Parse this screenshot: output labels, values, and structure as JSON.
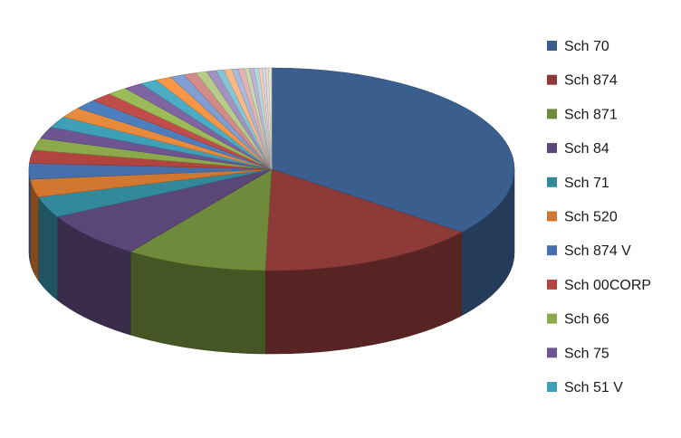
{
  "chart_data": {
    "type": "pie",
    "title": "",
    "three_d": true,
    "legend_position": "right",
    "slices": [
      {
        "name": "Sch 70",
        "value": 34.0,
        "color": "#3A5F8F"
      },
      {
        "name": "Sch 874",
        "value": 14.0,
        "color": "#8E3A38"
      },
      {
        "name": "Sch 871",
        "value": 9.0,
        "color": "#6F8A3A"
      },
      {
        "name": "Sch 84",
        "value": 7.0,
        "color": "#5B4777"
      },
      {
        "name": "Sch 71",
        "value": 3.2,
        "color": "#33889C"
      },
      {
        "name": "Sch 520",
        "value": 2.7,
        "color": "#D2772F"
      },
      {
        "name": "Sch 874 V",
        "value": 2.4,
        "color": "#4670AB"
      },
      {
        "name": "Sch 00CORP",
        "value": 2.0,
        "color": "#B14441"
      },
      {
        "name": "Sch 66",
        "value": 1.8,
        "color": "#8CAA4C"
      },
      {
        "name": "Sch 75",
        "value": 1.8,
        "color": "#6E5592"
      },
      {
        "name": "Sch 51 V",
        "value": 1.7,
        "color": "#3E9FB8"
      },
      {
        "name": "",
        "value": 1.6,
        "color": "#E88A3C"
      },
      {
        "name": "",
        "value": 1.5,
        "color": "#4D7FBF"
      },
      {
        "name": "",
        "value": 1.4,
        "color": "#C04D49"
      },
      {
        "name": "",
        "value": 1.3,
        "color": "#9BBB59"
      },
      {
        "name": "",
        "value": 1.2,
        "color": "#8064A2"
      },
      {
        "name": "",
        "value": 1.1,
        "color": "#4BACC6"
      },
      {
        "name": "",
        "value": 1.0,
        "color": "#F79646"
      },
      {
        "name": "",
        "value": 0.9,
        "color": "#7F9ED1"
      },
      {
        "name": "",
        "value": 0.8,
        "color": "#D38A88"
      },
      {
        "name": "",
        "value": 0.7,
        "color": "#B7CC8B"
      },
      {
        "name": "",
        "value": 0.6,
        "color": "#A391C0"
      },
      {
        "name": "",
        "value": 0.5,
        "color": "#85C4D6"
      },
      {
        "name": "",
        "value": 0.5,
        "color": "#F9B986"
      },
      {
        "name": "",
        "value": 0.4,
        "color": "#A8BBDE"
      },
      {
        "name": "",
        "value": 0.4,
        "color": "#E2B3B2"
      },
      {
        "name": "",
        "value": 0.3,
        "color": "#CBDAAE"
      },
      {
        "name": "",
        "value": 0.3,
        "color": "#C0B4D5"
      },
      {
        "name": "",
        "value": 0.3,
        "color": "#B2D8E3"
      },
      {
        "name": "",
        "value": 0.2,
        "color": "#FBD0AE"
      },
      {
        "name": "",
        "value": 0.2,
        "color": "#D0DAEE"
      },
      {
        "name": "",
        "value": 0.2,
        "color": "#EFD4D3"
      },
      {
        "name": "",
        "value": 0.2,
        "color": "#E0E9CF"
      }
    ]
  }
}
